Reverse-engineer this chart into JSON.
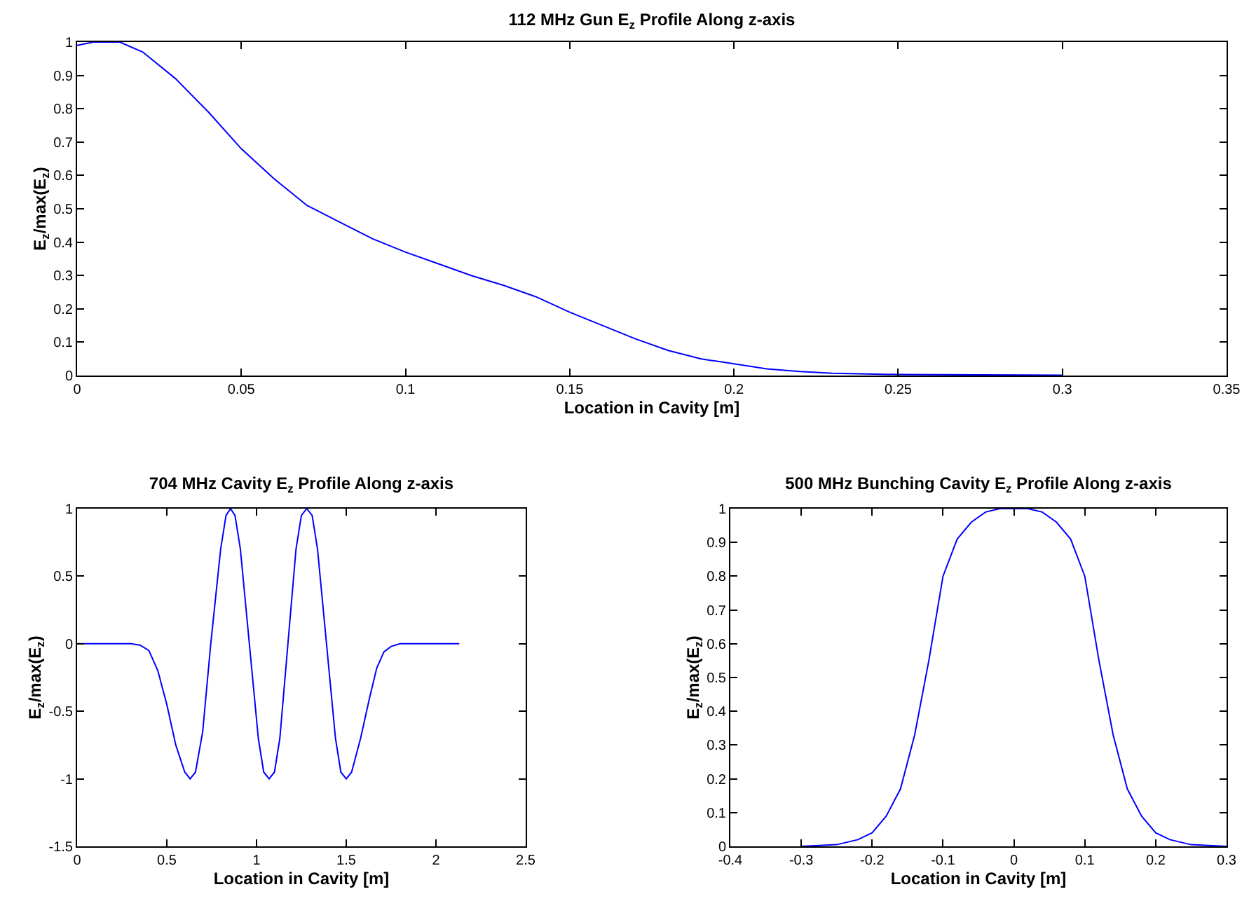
{
  "chart_data": [
    {
      "type": "line",
      "title": "112 MHz Gun E$_{z}$ Profile Along z-axis",
      "xlabel": "Location in Cavity [m]",
      "ylabel": "E$_{z}$/max(E$_{z}$)",
      "color": "#0000ff",
      "x": [
        0,
        0.005,
        0.013,
        0.02,
        0.03,
        0.04,
        0.05,
        0.06,
        0.07,
        0.08,
        0.09,
        0.1,
        0.11,
        0.12,
        0.13,
        0.14,
        0.15,
        0.16,
        0.17,
        0.18,
        0.19,
        0.2,
        0.21,
        0.22,
        0.23,
        0.25,
        0.3
      ],
      "values": [
        0.99,
        1,
        1,
        0.97,
        0.89,
        0.79,
        0.68,
        0.59,
        0.51,
        0.46,
        0.41,
        0.37,
        0.335,
        0.3,
        0.27,
        0.235,
        0.19,
        0.15,
        0.11,
        0.075,
        0.05,
        0.035,
        0.02,
        0.012,
        0.007,
        0.003,
        0.001
      ],
      "xlim": [
        0,
        0.35
      ],
      "ylim": [
        0,
        1
      ],
      "xticks": [
        0,
        0.05,
        0.1,
        0.15,
        0.2,
        0.25,
        0.3,
        0.35
      ],
      "yticks": [
        0,
        0.1,
        0.2,
        0.3,
        0.4,
        0.5,
        0.6,
        0.7,
        0.8,
        0.9,
        1
      ]
    },
    {
      "type": "line",
      "title": "704 MHz Cavity E$_{z}$ Profile Along z-axis",
      "xlabel": "Location in Cavity [m]",
      "ylabel": "E$_{z}$/max(E$_{z}$)",
      "color": "#0000ff",
      "x": [
        0,
        0.3,
        0.35,
        0.4,
        0.45,
        0.5,
        0.55,
        0.6,
        0.63,
        0.66,
        0.7,
        0.745,
        0.8,
        0.83,
        0.855,
        0.88,
        0.91,
        0.96,
        1.01,
        1.04,
        1.07,
        1.1,
        1.13,
        1.175,
        1.22,
        1.25,
        1.28,
        1.31,
        1.34,
        1.39,
        1.44,
        1.47,
        1.5,
        1.53,
        1.58,
        1.63,
        1.67,
        1.71,
        1.75,
        1.8,
        2.13
      ],
      "values": [
        0,
        0,
        -0.01,
        -0.05,
        -0.2,
        -0.45,
        -0.75,
        -0.95,
        -1,
        -0.95,
        -0.65,
        0,
        0.7,
        0.95,
        1,
        0.95,
        0.7,
        0,
        -0.7,
        -0.95,
        -1,
        -0.95,
        -0.7,
        0,
        0.7,
        0.95,
        1,
        0.95,
        0.7,
        0,
        -0.7,
        -0.95,
        -1,
        -0.95,
        -0.7,
        -0.4,
        -0.18,
        -0.06,
        -0.02,
        0,
        0
      ],
      "xlim": [
        0,
        2.5
      ],
      "ylim": [
        -1.5,
        1
      ],
      "xticks": [
        0,
        0.5,
        1,
        1.5,
        2,
        2.5
      ],
      "yticks": [
        -1.5,
        -1,
        -0.5,
        0,
        0.5,
        1
      ]
    },
    {
      "type": "line",
      "title": "500 MHz Bunching Cavity E$_{z}$ Profile Along z-axis",
      "xlabel": "Location in Cavity [m]",
      "ylabel": "E$_{z}$/max(E$_{z}$)",
      "color": "#0000ff",
      "x": [
        -0.3,
        -0.25,
        -0.22,
        -0.2,
        -0.18,
        -0.16,
        -0.14,
        -0.12,
        -0.1,
        -0.08,
        -0.06,
        -0.04,
        -0.02,
        0,
        0.02,
        0.04,
        0.06,
        0.08,
        0.1,
        0.12,
        0.14,
        0.16,
        0.18,
        0.2,
        0.22,
        0.25,
        0.3
      ],
      "values": [
        0,
        0.005,
        0.02,
        0.04,
        0.09,
        0.17,
        0.33,
        0.55,
        0.8,
        0.91,
        0.96,
        0.99,
        1,
        1,
        1,
        0.99,
        0.96,
        0.91,
        0.8,
        0.55,
        0.33,
        0.17,
        0.09,
        0.04,
        0.02,
        0.005,
        0
      ],
      "xlim": [
        -0.4,
        0.3
      ],
      "ylim": [
        0,
        1
      ],
      "xticks": [
        -0.4,
        -0.3,
        -0.2,
        -0.1,
        0,
        0.1,
        0.2,
        0.3
      ],
      "yticks": [
        0,
        0.1,
        0.2,
        0.3,
        0.4,
        0.5,
        0.6,
        0.7,
        0.8,
        0.9,
        1
      ]
    }
  ]
}
